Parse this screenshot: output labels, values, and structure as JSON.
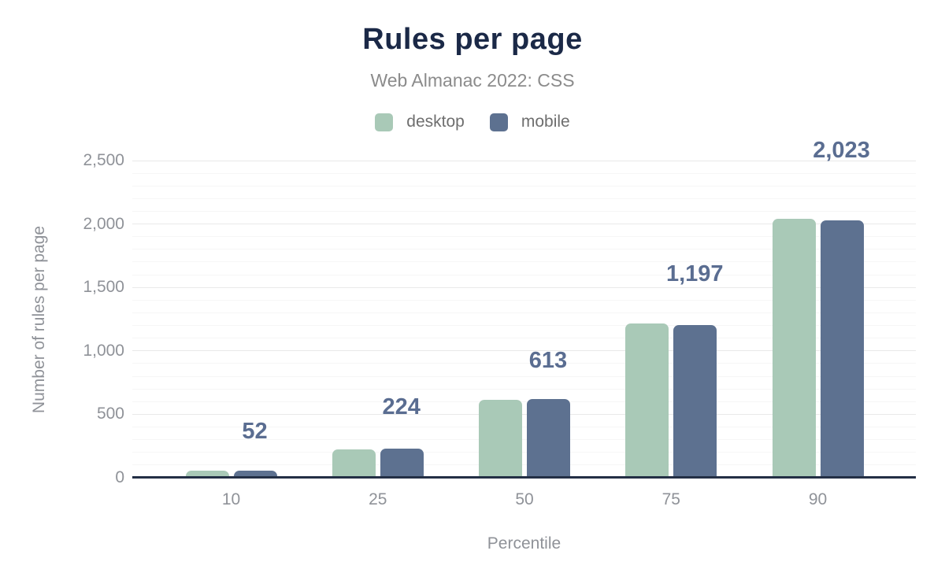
{
  "chart_data": {
    "type": "bar",
    "title": "Rules per page",
    "subtitle": "Web Almanac 2022: CSS",
    "xlabel": "Percentile",
    "ylabel": "Number of rules per page",
    "categories": [
      "10",
      "25",
      "50",
      "75",
      "90"
    ],
    "series": [
      {
        "name": "desktop",
        "color": "#a9c9b7",
        "values": [
          48,
          215,
          605,
          1210,
          2035
        ],
        "estimated": true
      },
      {
        "name": "mobile",
        "color": "#5d7190",
        "values": [
          52,
          224,
          613,
          1197,
          2023
        ]
      }
    ],
    "data_labels": {
      "on_series": "mobile",
      "labels": [
        "52",
        "224",
        "613",
        "1,197",
        "2,023"
      ]
    },
    "ylim": [
      0,
      2500
    ],
    "yticks": [
      {
        "value": 0,
        "label": "0"
      },
      {
        "value": 500,
        "label": "500"
      },
      {
        "value": 1000,
        "label": "1,000"
      },
      {
        "value": 1500,
        "label": "1,500"
      },
      {
        "value": 2000,
        "label": "2,000"
      },
      {
        "value": 2500,
        "label": "2,500"
      }
    ],
    "grid": {
      "minor_step": 100,
      "major_step": 500,
      "shown": true
    },
    "legend": {
      "position": "top",
      "entries": [
        "desktop",
        "mobile"
      ]
    }
  },
  "colors": {
    "background": "#ffffff",
    "title": "#1b2947",
    "subtitle": "#8b8b8b",
    "legend_text": "#6e6e6e",
    "tick_text": "#8f9298",
    "axis_title_text": "#8f9298",
    "data_label": "#5a6d91",
    "axis_line": "#232f45",
    "grid_major": "#e9e9e9",
    "grid_minor": "#f6f6f6",
    "desktop_bar": "#a9c9b7",
    "mobile_bar": "#5d7190"
  }
}
